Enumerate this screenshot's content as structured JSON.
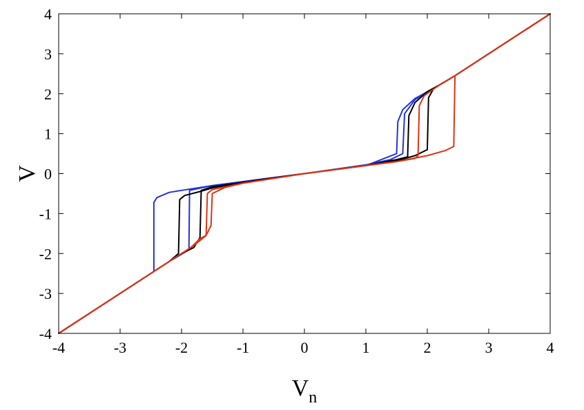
{
  "chart_data": {
    "type": "line",
    "title": "",
    "xlabel": "V",
    "xlabel_sub": "n",
    "ylabel": "V",
    "xlim": [
      -4,
      4
    ],
    "ylim": [
      -4,
      4
    ],
    "xticks": [
      -4,
      -3,
      -2,
      -1,
      0,
      1,
      2,
      3,
      4
    ],
    "yticks": [
      -4,
      -3,
      -2,
      -1,
      0,
      1,
      2,
      3,
      4
    ],
    "xtick_labels": [
      "-4",
      "-3",
      "-2",
      "-1",
      "0",
      "1",
      "2",
      "3",
      "4"
    ],
    "ytick_labels": [
      "-4",
      "-3",
      "-2",
      "-1",
      "0",
      "1",
      "2",
      "3",
      "4"
    ],
    "grid": false,
    "legend": "none",
    "series": [
      {
        "color": "#2233dd",
        "points": [
          [
            -4,
            -4
          ],
          [
            -2.45,
            -2.45
          ],
          [
            -2.45,
            -0.72
          ],
          [
            -2.4,
            -0.6
          ],
          [
            -2.2,
            -0.47
          ],
          [
            -2.0,
            -0.42
          ],
          [
            -1.5,
            -0.3
          ],
          [
            -1.0,
            -0.2
          ],
          [
            0,
            0
          ],
          [
            1.0,
            0.2
          ],
          [
            1.5,
            0.5
          ],
          [
            1.52,
            1.3
          ],
          [
            1.6,
            1.6
          ],
          [
            1.8,
            1.88
          ],
          [
            2.0,
            2.05
          ],
          [
            2.2,
            2.22
          ],
          [
            2.45,
            2.45
          ],
          [
            4,
            4
          ]
        ]
      },
      {
        "color": "#2233dd",
        "points": [
          [
            -4,
            -4
          ],
          [
            -2.45,
            -2.45
          ],
          [
            -2.2,
            -2.2
          ],
          [
            -2.0,
            -2.02
          ],
          [
            -1.88,
            -1.9
          ],
          [
            -1.87,
            -0.42
          ],
          [
            -1.5,
            -0.3
          ],
          [
            -1.0,
            -0.2
          ],
          [
            0,
            0
          ],
          [
            1.0,
            0.22
          ],
          [
            1.4,
            0.35
          ],
          [
            1.6,
            0.5
          ],
          [
            1.63,
            1.5
          ],
          [
            1.8,
            1.85
          ],
          [
            2.0,
            2.05
          ],
          [
            2.2,
            2.22
          ],
          [
            2.45,
            2.45
          ],
          [
            4,
            4
          ]
        ]
      },
      {
        "color": "#000000",
        "points": [
          [
            -4,
            -4
          ],
          [
            -2.45,
            -2.45
          ],
          [
            -2.2,
            -2.2
          ],
          [
            -2.05,
            -2.0
          ],
          [
            -2.03,
            -0.65
          ],
          [
            -1.95,
            -0.55
          ],
          [
            -1.7,
            -0.45
          ],
          [
            -1.5,
            -0.36
          ],
          [
            -1.0,
            -0.22
          ],
          [
            0,
            0
          ],
          [
            1.0,
            0.2
          ],
          [
            1.5,
            0.35
          ],
          [
            1.68,
            0.42
          ],
          [
            1.7,
            1.45
          ],
          [
            1.8,
            1.78
          ],
          [
            2.0,
            2.05
          ],
          [
            2.2,
            2.22
          ],
          [
            2.45,
            2.45
          ],
          [
            4,
            4
          ]
        ]
      },
      {
        "color": "#000000",
        "points": [
          [
            -4,
            -4
          ],
          [
            -2.45,
            -2.45
          ],
          [
            -2.2,
            -2.2
          ],
          [
            -2.0,
            -2.0
          ],
          [
            -1.8,
            -1.85
          ],
          [
            -1.7,
            -1.6
          ],
          [
            -1.68,
            -0.42
          ],
          [
            -1.5,
            -0.33
          ],
          [
            -1.0,
            -0.22
          ],
          [
            0,
            0
          ],
          [
            1.0,
            0.2
          ],
          [
            1.5,
            0.32
          ],
          [
            1.8,
            0.45
          ],
          [
            2.0,
            0.6
          ],
          [
            2.02,
            1.9
          ],
          [
            2.1,
            2.12
          ],
          [
            2.2,
            2.22
          ],
          [
            2.45,
            2.45
          ],
          [
            4,
            4
          ]
        ]
      },
      {
        "color": "#dd3311",
        "points": [
          [
            -4,
            -4
          ],
          [
            -2.45,
            -2.45
          ],
          [
            -2.2,
            -2.2
          ],
          [
            -2.0,
            -2.0
          ],
          [
            -1.85,
            -1.85
          ],
          [
            -1.7,
            -1.63
          ],
          [
            -1.6,
            -1.55
          ],
          [
            -1.58,
            -0.5
          ],
          [
            -1.5,
            -0.4
          ],
          [
            -1.0,
            -0.24
          ],
          [
            0,
            0
          ],
          [
            1.0,
            0.2
          ],
          [
            1.5,
            0.3
          ],
          [
            1.8,
            0.38
          ],
          [
            1.85,
            0.45
          ],
          [
            1.87,
            1.7
          ],
          [
            1.95,
            1.95
          ],
          [
            2.2,
            2.22
          ],
          [
            2.45,
            2.45
          ],
          [
            4,
            4
          ]
        ]
      },
      {
        "color": "#dd3311",
        "points": [
          [
            -4,
            -4
          ],
          [
            -2.45,
            -2.45
          ],
          [
            -2.2,
            -2.2
          ],
          [
            -2.0,
            -2.0
          ],
          [
            -1.8,
            -1.8
          ],
          [
            -1.6,
            -1.55
          ],
          [
            -1.52,
            -1.3
          ],
          [
            -1.5,
            -0.5
          ],
          [
            -1.3,
            -0.35
          ],
          [
            -1.0,
            -0.24
          ],
          [
            0,
            0
          ],
          [
            1.0,
            0.2
          ],
          [
            1.5,
            0.3
          ],
          [
            2.0,
            0.45
          ],
          [
            2.3,
            0.58
          ],
          [
            2.43,
            0.68
          ],
          [
            2.45,
            2.45
          ],
          [
            4,
            4
          ]
        ]
      }
    ]
  }
}
